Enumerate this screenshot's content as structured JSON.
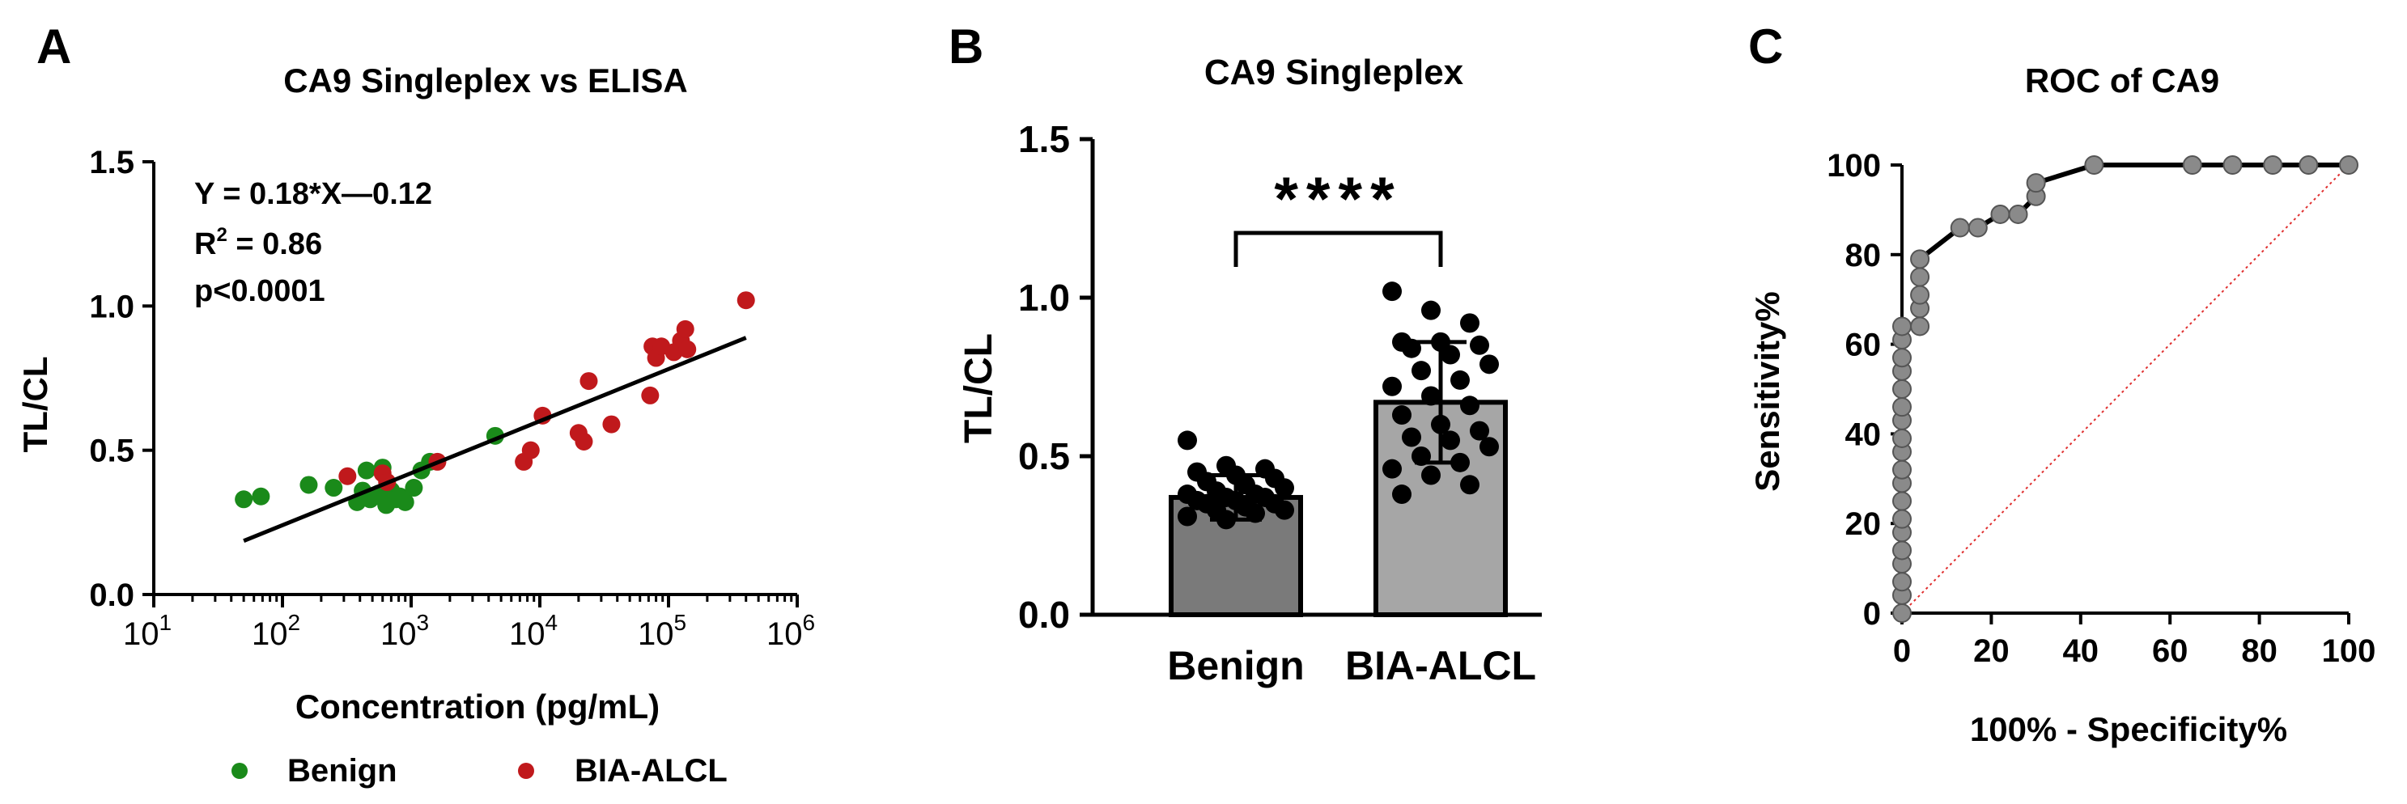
{
  "panels": {
    "A": {
      "letter": "A",
      "chart_data": {
        "type": "scatter",
        "title": "CA9 Singleplex vs ELISA",
        "xlabel": "Concentration (pg/mL)",
        "ylabel": "TL/CL",
        "x_scale": "log",
        "xlim": [
          10,
          1000000
        ],
        "ylim": [
          0,
          1.5
        ],
        "x_ticks": [
          {
            "value": 10,
            "base": "10",
            "exp": "1"
          },
          {
            "value": 100,
            "base": "10",
            "exp": "2"
          },
          {
            "value": 1000,
            "base": "10",
            "exp": "3"
          },
          {
            "value": 10000,
            "base": "10",
            "exp": "4"
          },
          {
            "value": 100000,
            "base": "10",
            "exp": "5"
          },
          {
            "value": 1000000,
            "base": "10",
            "exp": "6"
          }
        ],
        "y_ticks": [
          "0.0",
          "0.5",
          "1.0",
          "1.5"
        ],
        "y_tick_values": [
          0,
          0.5,
          1.0,
          1.5
        ],
        "annotations": {
          "equation": "Y = 0.18*X—0.12",
          "r2_prefix": "R",
          "r2_sup": "2",
          "r2_suffix": " = 0.86",
          "pvalue": "p<0.0001"
        },
        "fit_line": {
          "x": [
            50,
            400000
          ],
          "y": [
            0.186,
            0.89
          ]
        },
        "series": [
          {
            "name": "Benign",
            "color": "#1a8a1a",
            "points": [
              [
                50,
                0.33
              ],
              [
                68,
                0.34
              ],
              [
                160,
                0.38
              ],
              [
                250,
                0.37
              ],
              [
                380,
                0.32
              ],
              [
                420,
                0.36
              ],
              [
                450,
                0.43
              ],
              [
                480,
                0.33
              ],
              [
                520,
                0.34
              ],
              [
                560,
                0.35
              ],
              [
                600,
                0.44
              ],
              [
                640,
                0.31
              ],
              [
                700,
                0.36
              ],
              [
                760,
                0.33
              ],
              [
                820,
                0.34
              ],
              [
                900,
                0.32
              ],
              [
                1050,
                0.37
              ],
              [
                1200,
                0.43
              ],
              [
                1400,
                0.46
              ],
              [
                4500,
                0.55
              ]
            ]
          },
          {
            "name": "BIA-ALCL",
            "color": "#c0191c",
            "points": [
              [
                320,
                0.41
              ],
              [
                600,
                0.42
              ],
              [
                650,
                0.39
              ],
              [
                1600,
                0.46
              ],
              [
                7500,
                0.46
              ],
              [
                8500,
                0.5
              ],
              [
                10500,
                0.62
              ],
              [
                20000,
                0.56
              ],
              [
                22000,
                0.53
              ],
              [
                24000,
                0.74
              ],
              [
                36000,
                0.59
              ],
              [
                72000,
                0.69
              ],
              [
                75000,
                0.86
              ],
              [
                80000,
                0.82
              ],
              [
                88000,
                0.86
              ],
              [
                110000,
                0.84
              ],
              [
                125000,
                0.88
              ],
              [
                135000,
                0.92
              ],
              [
                140000,
                0.85
              ],
              [
                400000,
                1.02
              ]
            ]
          }
        ],
        "legend": [
          "Benign",
          "BIA-ALCL"
        ]
      }
    },
    "B": {
      "letter": "B",
      "chart_data": {
        "type": "bar",
        "title": "CA9 Singleplex",
        "ylabel": "TL/CL",
        "categories": [
          "Benign",
          "BIA-ALCL"
        ],
        "values": [
          0.37,
          0.67
        ],
        "sd": [
          0.07,
          0.19
        ],
        "ylim": [
          0,
          1.5
        ],
        "y_ticks": [
          "0.0",
          "0.5",
          "1.0",
          "1.5"
        ],
        "y_tick_values": [
          0,
          0.5,
          1.0,
          1.5
        ],
        "significance": "****",
        "bar_colors": [
          "#7a7a7a",
          "#a6a6a6"
        ],
        "points": [
          [
            0.55,
            0.47,
            0.46,
            0.45,
            0.44,
            0.43,
            0.42,
            0.41,
            0.4,
            0.39,
            0.38,
            0.38,
            0.37,
            0.37,
            0.36,
            0.36,
            0.35,
            0.35,
            0.34,
            0.33,
            0.33,
            0.32,
            0.31,
            0.3
          ],
          [
            1.02,
            0.96,
            0.92,
            0.86,
            0.86,
            0.85,
            0.84,
            0.82,
            0.79,
            0.77,
            0.74,
            0.72,
            0.69,
            0.66,
            0.63,
            0.6,
            0.58,
            0.56,
            0.55,
            0.53,
            0.5,
            0.48,
            0.46,
            0.44,
            0.41,
            0.38
          ]
        ]
      }
    },
    "C": {
      "letter": "C",
      "chart_data": {
        "type": "line",
        "title": "ROC of CA9",
        "xlabel": "100% - Specificity%",
        "ylabel": "Sensitivity%",
        "xlim": [
          0,
          100
        ],
        "ylim": [
          0,
          100
        ],
        "x_ticks": [
          "0",
          "20",
          "40",
          "60",
          "80",
          "100"
        ],
        "x_tick_values": [
          0,
          20,
          40,
          60,
          80,
          100
        ],
        "y_ticks": [
          "0",
          "20",
          "40",
          "60",
          "80",
          "100"
        ],
        "y_tick_values": [
          0,
          20,
          40,
          60,
          80,
          100
        ],
        "roc": [
          [
            0,
            0
          ],
          [
            0,
            4
          ],
          [
            0,
            7
          ],
          [
            0,
            11
          ],
          [
            0,
            14
          ],
          [
            0,
            18
          ],
          [
            0,
            21
          ],
          [
            0,
            25
          ],
          [
            0,
            29
          ],
          [
            0,
            32
          ],
          [
            0,
            36
          ],
          [
            0,
            39
          ],
          [
            0,
            43
          ],
          [
            0,
            46
          ],
          [
            0,
            50
          ],
          [
            0,
            54
          ],
          [
            0,
            57
          ],
          [
            0,
            61
          ],
          [
            0,
            64
          ],
          [
            4,
            64
          ],
          [
            4,
            68
          ],
          [
            4,
            71
          ],
          [
            4,
            75
          ],
          [
            4,
            79
          ],
          [
            13,
            86
          ],
          [
            17,
            86
          ],
          [
            22,
            89
          ],
          [
            26,
            89
          ],
          [
            30,
            93
          ],
          [
            30,
            96
          ],
          [
            43,
            100
          ],
          [
            65,
            100
          ],
          [
            74,
            100
          ],
          [
            83,
            100
          ],
          [
            91,
            100
          ],
          [
            100,
            100
          ]
        ],
        "diagonal": true
      }
    }
  }
}
